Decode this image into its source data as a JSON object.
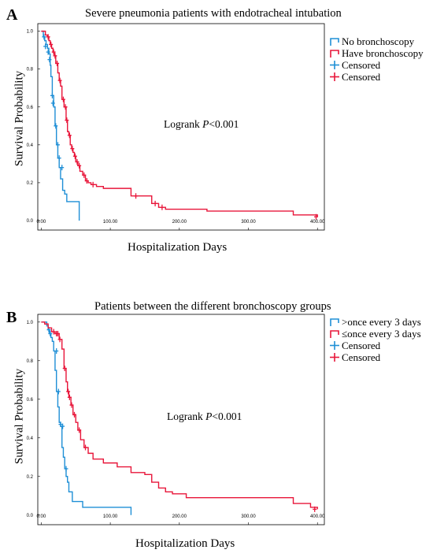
{
  "chart_data": [
    {
      "type": "line",
      "panel_label": "A",
      "title": "Severe pneumonia patients with endotracheal intubation",
      "xlabel": "Hospitalization Days",
      "ylabel": "Survival Probability",
      "annotation_prefix": "Logrank ",
      "annotation_p": "P",
      "annotation_suffix": "<0.001",
      "xlim": [
        -5,
        410
      ],
      "ylim": [
        -0.05,
        1.04
      ],
      "x_ticks": [
        0,
        100,
        200,
        300,
        400
      ],
      "x_tick_labels": [
        "0.00",
        "100.00",
        "200.00",
        "300.00",
        "400.00"
      ],
      "y_ticks": [
        0,
        0.2,
        0.4,
        0.6,
        0.8,
        1.0
      ],
      "y_tick_labels": [
        "0.0",
        "0.2",
        "0.4",
        "0.6",
        "0.8",
        "1.0"
      ],
      "grid": false,
      "legend_position": "top-right",
      "legend": [
        {
          "label": "No bronchoscopy",
          "kind": "step",
          "color": "#1f8fd6"
        },
        {
          "label": "Have bronchoscopy",
          "kind": "step",
          "color": "#e8163a"
        },
        {
          "label": "Censored",
          "kind": "censor",
          "color": "#1f8fd6"
        },
        {
          "label": "Censored",
          "kind": "censor",
          "color": "#e8163a"
        }
      ],
      "series": [
        {
          "name": "No bronchoscopy",
          "color": "#1f8fd6",
          "x": [
            0,
            3,
            5,
            7,
            9,
            11,
            13,
            14,
            16,
            18,
            20,
            22,
            24,
            26,
            28,
            31,
            34,
            37,
            40,
            55
          ],
          "y": [
            1.0,
            0.97,
            0.95,
            0.93,
            0.91,
            0.88,
            0.82,
            0.76,
            0.66,
            0.6,
            0.5,
            0.4,
            0.33,
            0.28,
            0.22,
            0.16,
            0.14,
            0.1,
            0.1,
            0.0
          ],
          "censored_x": [
            4,
            6,
            10,
            12,
            16,
            17,
            21,
            24,
            26,
            30
          ],
          "censored_y": [
            0.97,
            0.92,
            0.89,
            0.85,
            0.66,
            0.62,
            0.5,
            0.4,
            0.33,
            0.28
          ]
        },
        {
          "name": "Have bronchoscopy",
          "color": "#e8163a",
          "x": [
            0,
            6,
            9,
            11,
            13,
            15,
            17,
            19,
            21,
            24,
            26,
            28,
            30,
            33,
            36,
            38,
            40,
            42,
            44,
            46,
            48,
            50,
            53,
            56,
            60,
            64,
            68,
            72,
            80,
            90,
            130,
            160,
            170,
            180,
            200,
            240,
            365,
            400
          ],
          "y": [
            1.0,
            0.98,
            0.97,
            0.95,
            0.93,
            0.91,
            0.89,
            0.87,
            0.83,
            0.78,
            0.74,
            0.71,
            0.64,
            0.6,
            0.53,
            0.47,
            0.45,
            0.4,
            0.38,
            0.36,
            0.34,
            0.31,
            0.29,
            0.26,
            0.24,
            0.21,
            0.2,
            0.19,
            0.18,
            0.17,
            0.13,
            0.09,
            0.07,
            0.06,
            0.06,
            0.05,
            0.03,
            0.02
          ],
          "censored_x": [
            10,
            14,
            18,
            20,
            23,
            27,
            32,
            35,
            37,
            41,
            45,
            49,
            52,
            55,
            62,
            66,
            75,
            137,
            165,
            175,
            398
          ],
          "censored_y": [
            0.97,
            0.93,
            0.89,
            0.87,
            0.83,
            0.74,
            0.64,
            0.6,
            0.53,
            0.45,
            0.38,
            0.34,
            0.31,
            0.29,
            0.24,
            0.21,
            0.19,
            0.13,
            0.09,
            0.07,
            0.02
          ]
        }
      ]
    },
    {
      "type": "line",
      "panel_label": "B",
      "title": "Patients between the different bronchoscopy groups",
      "xlabel": "Hospitalization Days",
      "ylabel": "Survival Probability",
      "annotation_prefix": "Logrank ",
      "annotation_p": "P",
      "annotation_suffix": "<0.001",
      "xlim": [
        -5,
        410
      ],
      "ylim": [
        -0.05,
        1.04
      ],
      "x_ticks": [
        0,
        100,
        200,
        300,
        400
      ],
      "x_tick_labels": [
        "0.00",
        "100.00",
        "200.00",
        "300.00",
        "400.00"
      ],
      "y_ticks": [
        0,
        0.2,
        0.4,
        0.6,
        0.8,
        1.0
      ],
      "y_tick_labels": [
        "0.0",
        "0.2",
        "0.4",
        "0.6",
        "0.8",
        "1.0"
      ],
      "grid": false,
      "legend_position": "top-right",
      "legend": [
        {
          "label": ">once every 3 days",
          "kind": "step",
          "color": "#1f8fd6"
        },
        {
          "label": "≤once every 3 days",
          "kind": "step",
          "color": "#e8163a"
        },
        {
          "label": "Censored",
          "kind": "censor",
          "color": "#1f8fd6"
        },
        {
          "label": "Censored",
          "kind": "censor",
          "color": "#e8163a"
        }
      ],
      "series": [
        {
          "name": ">once every 3 days",
          "color": "#1f8fd6",
          "x": [
            0,
            8,
            10,
            12,
            14,
            16,
            18,
            20,
            22,
            24,
            26,
            28,
            30,
            32,
            34,
            36,
            38,
            40,
            45,
            60,
            130
          ],
          "y": [
            1.0,
            0.98,
            0.96,
            0.94,
            0.92,
            0.9,
            0.85,
            0.75,
            0.64,
            0.56,
            0.48,
            0.46,
            0.35,
            0.3,
            0.24,
            0.2,
            0.17,
            0.12,
            0.07,
            0.04,
            0.0
          ],
          "censored_x": [
            11,
            13,
            22,
            25,
            28,
            31,
            36
          ],
          "censored_y": [
            0.96,
            0.94,
            0.85,
            0.64,
            0.47,
            0.46,
            0.24
          ]
        },
        {
          "name": "≤once every 3 days",
          "color": "#e8163a",
          "x": [
            0,
            5,
            10,
            15,
            20,
            26,
            30,
            33,
            36,
            38,
            40,
            43,
            46,
            50,
            53,
            57,
            62,
            68,
            75,
            90,
            110,
            130,
            150,
            160,
            170,
            180,
            190,
            210,
            365,
            390,
            400
          ],
          "y": [
            1.0,
            0.99,
            0.97,
            0.95,
            0.94,
            0.91,
            0.86,
            0.76,
            0.69,
            0.64,
            0.61,
            0.57,
            0.52,
            0.48,
            0.44,
            0.39,
            0.35,
            0.32,
            0.29,
            0.27,
            0.25,
            0.22,
            0.21,
            0.17,
            0.14,
            0.12,
            0.11,
            0.09,
            0.06,
            0.04,
            0.03
          ],
          "censored_x": [
            18,
            22,
            24,
            27,
            34,
            39,
            41,
            44,
            48,
            55,
            64,
            396
          ],
          "censored_y": [
            0.95,
            0.94,
            0.94,
            0.91,
            0.76,
            0.64,
            0.61,
            0.57,
            0.52,
            0.44,
            0.35,
            0.03
          ]
        }
      ]
    }
  ]
}
